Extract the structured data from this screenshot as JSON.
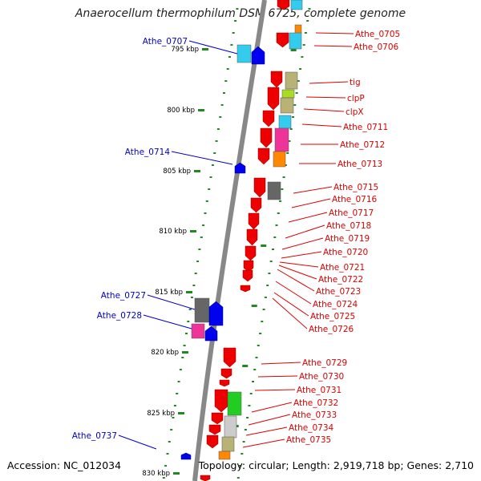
{
  "title": "Anaerocellum thermophilum DSM 6725, complete genome",
  "footer": {
    "accession": "Accession: NC_012034",
    "summary": "Topology: circular; Length: 2,919,718 bp; Genes: 2,710"
  },
  "colors": {
    "red": "#ee0000",
    "blue": "#0000ee",
    "cyan": "#33ccee",
    "olive": "#b8b277",
    "lime": "#aadd22",
    "magenta": "#ee3399",
    "orange": "#ff8800",
    "gray": "#666666",
    "lightgray": "#cccccc",
    "green": "#22cc22",
    "tick": "#228822",
    "backbone": "#888888",
    "label_left": "#0000cc",
    "label_right": "#dd0000"
  },
  "kbp_markers": [
    "795 kbp",
    "800 kbp",
    "805 kbp",
    "810 kbp",
    "815 kbp",
    "820 kbp",
    "825 kbp",
    "830 kbp"
  ],
  "genes_left": [
    "Athe_0707",
    "Athe_0714",
    "Athe_0727",
    "Athe_0728",
    "Athe_0737"
  ],
  "genes_right": [
    "Athe_0705",
    "Athe_0706",
    "tig",
    "clpP",
    "clpX",
    "Athe_0711",
    "Athe_0712",
    "Athe_0713",
    "Athe_0715",
    "Athe_0716",
    "Athe_0717",
    "Athe_0718",
    "Athe_0719",
    "Athe_0720",
    "Athe_0721",
    "Athe_0722",
    "Athe_0723",
    "Athe_0724",
    "Athe_0725",
    "Athe_0726",
    "Athe_0729",
    "Athe_0730",
    "Athe_0731",
    "Athe_0732",
    "Athe_0733",
    "Athe_0734",
    "Athe_0735"
  ]
}
